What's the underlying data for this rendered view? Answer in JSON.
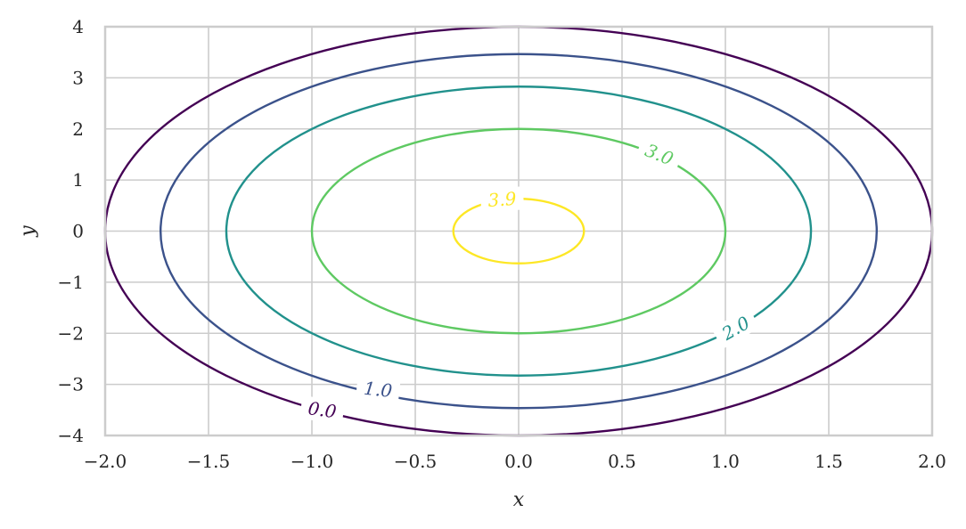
{
  "chart_data": {
    "type": "contour",
    "title": "",
    "xlabel": "x",
    "ylabel": "y",
    "xlim": [
      -2.0,
      2.0
    ],
    "ylim": [
      -4,
      4
    ],
    "x_ticks": [
      -2.0,
      -1.5,
      -1.0,
      -0.5,
      0.0,
      0.5,
      1.0,
      1.5,
      2.0
    ],
    "y_ticks": [
      -4,
      -3,
      -2,
      -1,
      0,
      1,
      2,
      3,
      4
    ],
    "x_tick_labels": [
      "−2.0",
      "−1.5",
      "−1.0",
      "−0.5",
      "0.0",
      "0.5",
      "1.0",
      "1.5",
      "2.0"
    ],
    "y_tick_labels": [
      "−4",
      "−3",
      "−2",
      "−1",
      "0",
      "1",
      "2",
      "3",
      "4"
    ],
    "grid": true,
    "levels": [
      {
        "value": 0.0,
        "label": "0.0",
        "color": "#440154",
        "x_semi": 2.0,
        "y_semi": 4.0,
        "label_at": [
          -0.95,
          -3.5
        ],
        "label_rotation": 8
      },
      {
        "value": 1.0,
        "label": "1.0",
        "color": "#3b528b",
        "x_semi": 1.732,
        "y_semi": 3.464,
        "label_at": [
          -0.68,
          -3.1
        ],
        "label_rotation": 6
      },
      {
        "value": 2.0,
        "label": "2.0",
        "color": "#21918c",
        "x_semi": 1.414,
        "y_semi": 2.828,
        "label_at": [
          1.05,
          -1.9
        ],
        "label_rotation": -30
      },
      {
        "value": 3.0,
        "label": "3.0",
        "color": "#5ec962",
        "x_semi": 1.0,
        "y_semi": 2.0,
        "label_at": [
          0.68,
          1.5
        ],
        "label_rotation": 22
      },
      {
        "value": 3.9,
        "label": "3.9",
        "color": "#fde725",
        "x_semi": 0.316,
        "y_semi": 0.632,
        "label_at": [
          -0.08,
          0.62
        ],
        "label_rotation": -4
      }
    ]
  }
}
